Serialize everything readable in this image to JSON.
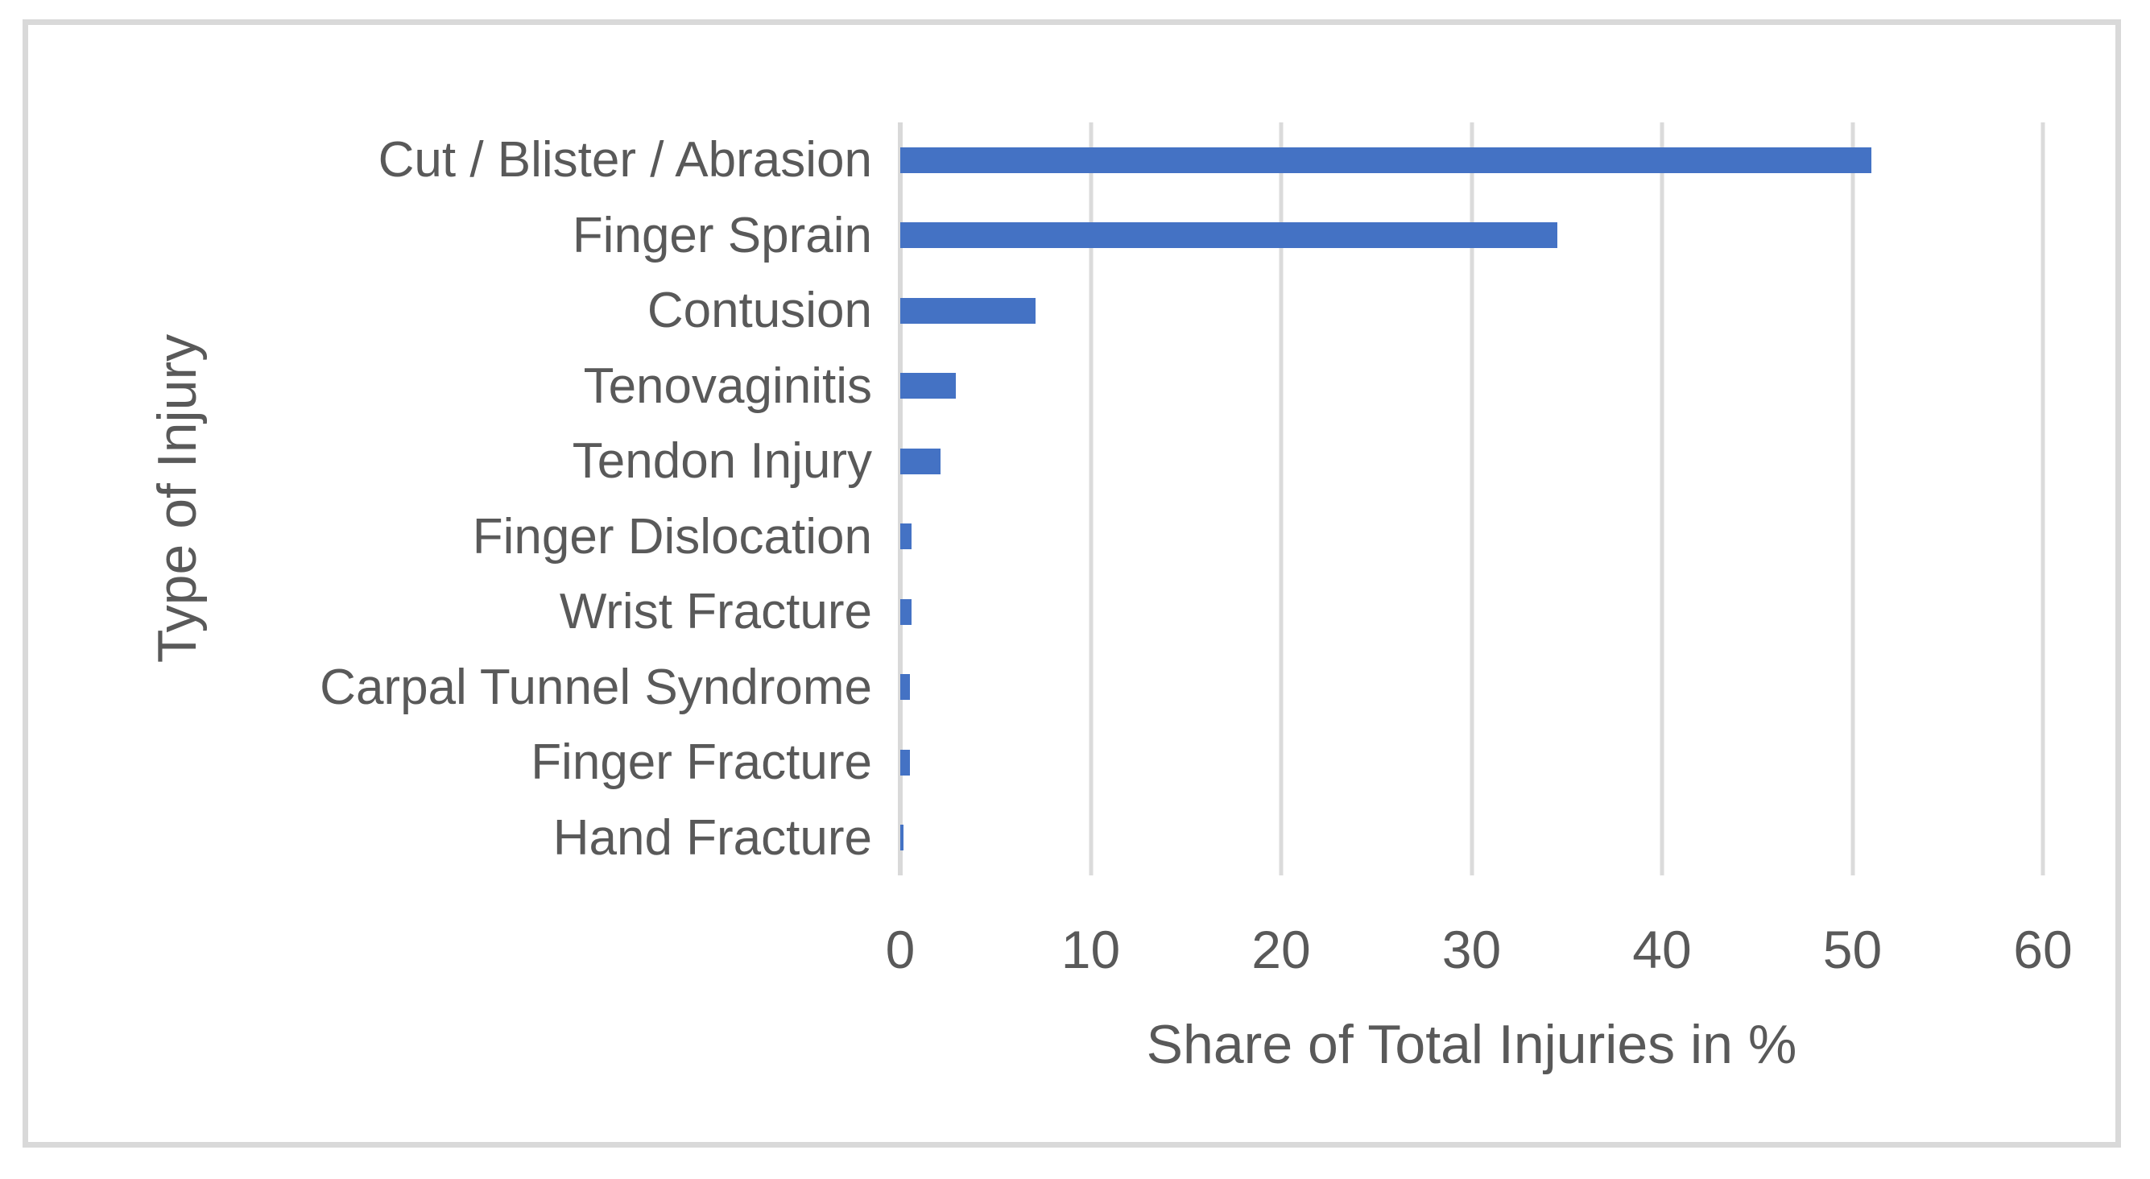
{
  "chart_data": {
    "type": "bar",
    "orientation": "horizontal",
    "categories": [
      "Cut / Blister / Abrasion",
      "Finger Sprain",
      "Contusion",
      "Tenovaginitis",
      "Tendon Injury",
      "Finger Dislocation",
      "Wrist Fracture",
      "Carpal Tunnel Syndrome",
      "Finger Fracture",
      "Hand Fracture"
    ],
    "values": [
      51,
      34.5,
      7.1,
      2.9,
      2.1,
      0.6,
      0.6,
      0.5,
      0.5,
      0.15
    ],
    "xlabel": "Share of Total Injuries in %",
    "ylabel": "Type of Injury",
    "xlim": [
      0,
      60
    ],
    "xticks": [
      0,
      10,
      20,
      30,
      40,
      50,
      60
    ],
    "grid": true,
    "legend": false,
    "bar_color": "#4472C4",
    "gridline_color": "#DBDBDB",
    "axis_line_color": "#D9D9D9",
    "text_color": "#595959",
    "frame_color": "#D9D9D9"
  }
}
